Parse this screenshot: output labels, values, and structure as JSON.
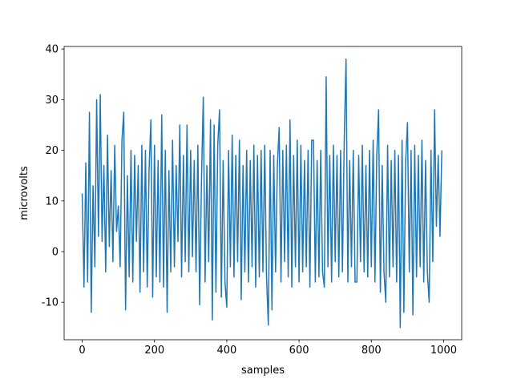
{
  "chart_data": {
    "type": "line",
    "xlabel": "samples",
    "ylabel": "microvolts",
    "color": "#1f77b4",
    "x": [
      0,
      5,
      10,
      15,
      20,
      25,
      30,
      35,
      40,
      45,
      50,
      55,
      60,
      65,
      70,
      75,
      80,
      85,
      90,
      95,
      100,
      105,
      110,
      115,
      120,
      125,
      130,
      135,
      140,
      145,
      150,
      155,
      160,
      165,
      170,
      175,
      180,
      185,
      190,
      195,
      200,
      205,
      210,
      215,
      220,
      225,
      230,
      235,
      240,
      245,
      250,
      255,
      260,
      265,
      270,
      275,
      280,
      285,
      290,
      295,
      300,
      305,
      310,
      315,
      320,
      325,
      330,
      335,
      340,
      345,
      350,
      355,
      360,
      365,
      370,
      375,
      380,
      385,
      390,
      395,
      400,
      405,
      410,
      415,
      420,
      425,
      430,
      435,
      440,
      445,
      450,
      455,
      460,
      465,
      470,
      475,
      480,
      485,
      490,
      495,
      500,
      505,
      510,
      515,
      520,
      525,
      530,
      535,
      540,
      545,
      550,
      555,
      560,
      565,
      570,
      575,
      580,
      585,
      590,
      595,
      600,
      605,
      610,
      615,
      620,
      625,
      630,
      635,
      640,
      645,
      650,
      655,
      660,
      665,
      670,
      675,
      680,
      685,
      690,
      695,
      700,
      705,
      710,
      715,
      720,
      725,
      730,
      735,
      740,
      745,
      750,
      755,
      760,
      765,
      770,
      775,
      780,
      785,
      790,
      795,
      800,
      805,
      810,
      815,
      820,
      825,
      830,
      835,
      840,
      845,
      850,
      855,
      860,
      865,
      870,
      875,
      880,
      885,
      890,
      895,
      900,
      905,
      910,
      915,
      920,
      925,
      930,
      935,
      940,
      945,
      950,
      955,
      960,
      965,
      970,
      975,
      980,
      985,
      990,
      995
    ],
    "values": [
      11.5,
      -7,
      17.5,
      -6,
      27.5,
      -12,
      13,
      -3,
      30,
      3,
      31,
      2,
      17,
      -4,
      23,
      1,
      16,
      -2,
      21,
      4,
      9,
      -3,
      22,
      27.5,
      -11.5,
      15,
      -5,
      20,
      -6,
      19,
      2,
      17,
      -8,
      21,
      -4,
      20,
      -7,
      16,
      26,
      -9,
      21,
      -5,
      18,
      -6,
      27,
      -7,
      20,
      -12,
      16,
      -4,
      22,
      -3,
      17,
      2,
      25,
      -5,
      19,
      -2,
      25,
      -4,
      20,
      -1,
      18,
      -4,
      21,
      -10.5,
      14,
      30.5,
      -6,
      17,
      -2,
      26,
      -13.5,
      25,
      -8,
      21,
      28,
      -9,
      18,
      -6,
      -11,
      20,
      -3,
      23,
      -5,
      19,
      -2,
      22,
      -9.5,
      17,
      -4,
      20,
      -6,
      18,
      -3,
      21,
      -7,
      19,
      -5,
      20,
      -4,
      21,
      -5,
      -14.5,
      20,
      -11.5,
      19,
      -4,
      17,
      24.5,
      -6,
      20,
      -2,
      21,
      -5,
      26,
      -7,
      19,
      -3,
      22,
      -6,
      21,
      -4,
      18,
      -3,
      20,
      -7,
      22,
      22,
      -6,
      18,
      -5,
      20,
      -4,
      -7,
      34.5,
      -3,
      19,
      -6,
      21,
      -2,
      19,
      -5,
      20,
      -4,
      22,
      38,
      -6,
      18,
      -3,
      20,
      -6,
      -6,
      19,
      -2,
      21,
      -4,
      17,
      -5,
      20,
      -3,
      22,
      -6,
      19,
      28,
      -8,
      17,
      -4,
      -10,
      21,
      -5,
      18,
      -3,
      20,
      -6,
      19,
      -15,
      22,
      -12,
      18,
      25.5,
      -4,
      20,
      -12.5,
      21,
      -5,
      19,
      -3,
      22,
      -6,
      18,
      -4,
      -10,
      20,
      -2,
      28,
      5,
      19,
      3,
      20
    ],
    "xlim": [
      -50,
      1050
    ],
    "ylim": [
      -17.4,
      40.5
    ],
    "xticks": [
      0,
      200,
      400,
      600,
      800,
      1000
    ],
    "yticks": [
      -10,
      0,
      10,
      20,
      30,
      40
    ]
  }
}
